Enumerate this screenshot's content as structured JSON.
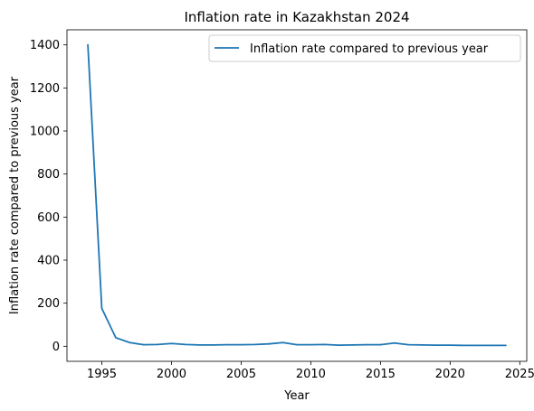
{
  "chart_data": {
    "type": "line",
    "title": "Inflation rate in Kazakhstan 2024",
    "xlabel": "Year",
    "ylabel": "Inflation rate compared to previous year",
    "xlim": [
      1992.5,
      2025.5
    ],
    "ylim": [
      -70,
      1470
    ],
    "xticks": [
      1995,
      2000,
      2005,
      2010,
      2015,
      2020,
      2025
    ],
    "yticks": [
      0,
      200,
      400,
      600,
      800,
      1000,
      1200,
      1400
    ],
    "grid": false,
    "legend_position": "upper right",
    "series": [
      {
        "name": "Inflation rate compared to previous year",
        "color": "#1f77b4",
        "x": [
          1994,
          1995,
          1996,
          1997,
          1998,
          1999,
          2000,
          2001,
          2002,
          2003,
          2004,
          2005,
          2006,
          2007,
          2008,
          2009,
          2010,
          2011,
          2012,
          2013,
          2014,
          2015,
          2016,
          2017,
          2018,
          2019,
          2020,
          2021,
          2022,
          2023,
          2024
        ],
        "y": [
          1400,
          176,
          40,
          17,
          7,
          8,
          13,
          8,
          6,
          6,
          7,
          7,
          8,
          11,
          17,
          7,
          7,
          8,
          5,
          6,
          7,
          7,
          15,
          7,
          6,
          5,
          5,
          4,
          4,
          4,
          4
        ]
      }
    ]
  }
}
